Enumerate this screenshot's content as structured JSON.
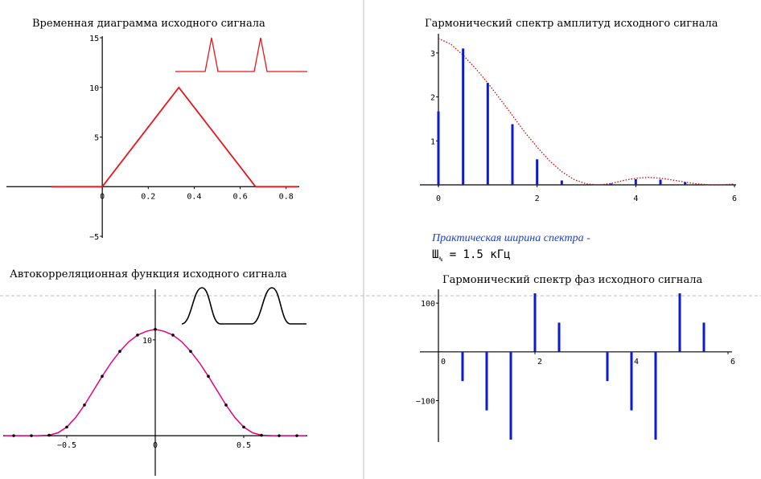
{
  "colors": {
    "signal": "#e8151b",
    "spectrum": "#0a1bd6",
    "envelope": "#d40000",
    "acf": "#e8007e",
    "acf_points": "#000000",
    "pulse_black": "#000000",
    "divider": "#bdbdbd"
  },
  "chart_data": [
    {
      "id": "time",
      "type": "line",
      "title": "Временная диаграмма исходного сигнала",
      "xlim": [
        -0.2,
        0.85
      ],
      "ylim": [
        -5,
        15
      ],
      "x_ticks": [
        0,
        0.2,
        0.4,
        0.6,
        0.8
      ],
      "x_tick_labels": [
        "0",
        "0.2",
        "0.4",
        "0.6",
        "0.8"
      ],
      "y_ticks": [
        -5,
        5,
        10,
        15
      ],
      "y_tick_labels": [
        "−5",
        "5",
        "10",
        "15"
      ],
      "series": [
        {
          "x": [
            -0.22,
            0,
            0.333,
            0.667,
            0.85
          ],
          "y": [
            0,
            0,
            10,
            0,
            0
          ]
        }
      ]
    },
    {
      "id": "amp",
      "type": "bar",
      "title": "Гармонический спектр амплитуд исходного сигнала",
      "xlim": [
        0,
        6
      ],
      "ylim": [
        0,
        3.4
      ],
      "x_ticks": [
        0,
        2,
        4,
        6
      ],
      "x_tick_labels": [
        "0",
        "2",
        "4",
        "6"
      ],
      "y_ticks": [
        1,
        2,
        3
      ],
      "y_tick_labels": [
        "1",
        "2",
        "3"
      ],
      "bars": {
        "x": [
          0,
          0.5,
          1.0,
          1.5,
          2.0,
          2.5,
          3.0,
          3.5,
          4.0,
          4.5,
          5.0,
          5.5
        ],
        "y": [
          1.67,
          3.1,
          2.32,
          1.38,
          0.58,
          0.1,
          0.0,
          0.03,
          0.13,
          0.12,
          0.06,
          0.0
        ]
      },
      "envelope": {
        "x": [
          0,
          0.25,
          0.5,
          0.75,
          1.0,
          1.25,
          1.5,
          1.75,
          2.0,
          2.25,
          2.5,
          2.75,
          3.0,
          3.25,
          3.5,
          3.75,
          4.0,
          4.25,
          4.5,
          4.75,
          5.0,
          5.25,
          5.5,
          5.75,
          6.0
        ],
        "y": [
          3.33,
          3.2,
          2.95,
          2.65,
          2.32,
          1.95,
          1.58,
          1.2,
          0.86,
          0.55,
          0.3,
          0.12,
          0.02,
          0.0,
          0.03,
          0.1,
          0.15,
          0.17,
          0.15,
          0.11,
          0.06,
          0.02,
          0.0,
          0.0,
          0.02
        ]
      }
    },
    {
      "id": "acf",
      "type": "line",
      "title": "Автокорреляционная функция исходного сигнала",
      "xlim": [
        -0.85,
        0.85
      ],
      "ylim": [
        -1.5,
        11.5
      ],
      "x_ticks": [
        -0.5,
        0,
        0.5
      ],
      "x_tick_labels": [
        "−0.5",
        "0",
        "0.5"
      ],
      "y_ticks": [
        10
      ],
      "y_tick_labels": [
        "10"
      ],
      "series": [
        {
          "x": [
            -0.85,
            -0.75,
            -0.667,
            -0.6,
            -0.55,
            -0.5,
            -0.45,
            -0.4,
            -0.35,
            -0.3,
            -0.25,
            -0.2,
            -0.15,
            -0.1,
            -0.05,
            0,
            0.05,
            0.1,
            0.15,
            0.2,
            0.25,
            0.3,
            0.35,
            0.4,
            0.45,
            0.5,
            0.55,
            0.6,
            0.667,
            0.75,
            0.85
          ],
          "y": [
            0,
            0,
            0,
            0.05,
            0.3,
            0.9,
            1.9,
            3.2,
            4.7,
            6.2,
            7.6,
            8.8,
            9.8,
            10.5,
            10.9,
            11.1,
            10.9,
            10.5,
            9.8,
            8.8,
            7.6,
            6.2,
            4.7,
            3.2,
            1.9,
            0.9,
            0.3,
            0.05,
            0,
            0,
            0
          ]
        }
      ],
      "points": {
        "x": [
          -0.8,
          -0.7,
          -0.6,
          -0.5,
          -0.4,
          -0.3,
          -0.2,
          -0.1,
          0,
          0.1,
          0.2,
          0.3,
          0.4,
          0.5,
          0.6,
          0.7,
          0.8
        ],
        "y": [
          0,
          0,
          0.05,
          0.9,
          3.2,
          6.2,
          8.8,
          10.5,
          11.1,
          10.5,
          8.8,
          6.2,
          3.2,
          0.9,
          0.05,
          0,
          0
        ]
      }
    },
    {
      "id": "phase",
      "type": "bar",
      "title": "Гармонический спектр фаз исходного сигнала",
      "xlim": [
        0,
        6
      ],
      "ylim": [
        -185,
        125
      ],
      "x_ticks": [
        0,
        2,
        4,
        6
      ],
      "x_tick_labels": [
        "0",
        "2",
        "4",
        "6"
      ],
      "y_ticks": [
        100,
        -100
      ],
      "y_tick_labels": [
        "100",
        "−100"
      ],
      "bars": {
        "x": [
          0.5,
          1.0,
          1.5,
          2.0,
          2.5,
          3.5,
          4.0,
          4.5,
          5.0,
          5.5
        ],
        "y": [
          -60,
          -120,
          -180,
          120,
          60,
          -60,
          -120,
          -180,
          120,
          60
        ]
      }
    }
  ],
  "notes": {
    "practical_width_title": "Практическая ширина спектра  -",
    "practical_width_symbol": "Ш",
    "practical_width_sub": "%",
    "practical_width_value": " = 1.5  кГц"
  }
}
